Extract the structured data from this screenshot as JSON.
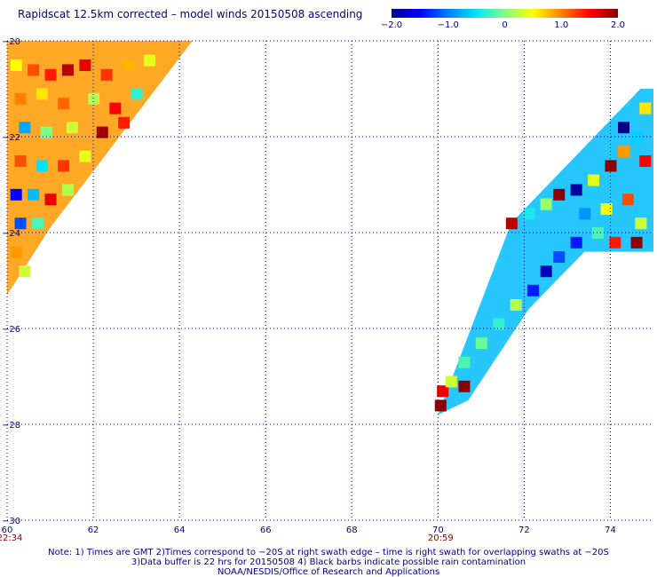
{
  "title": "Rapidscat 12.5km corrected – model winds 20150508 ascending",
  "colorbar": {
    "ticks": [
      "−2.0",
      "−1.0",
      "0",
      "1.0",
      "2.0"
    ],
    "tick_values": [
      -2.0,
      -1.0,
      0.0,
      1.0,
      2.0
    ],
    "colors": [
      "#00008b",
      "#0000ff",
      "#0080ff",
      "#00e5ff",
      "#80ff80",
      "#ffff00",
      "#ff8000",
      "#ff0000",
      "#8b0000"
    ]
  },
  "axes": {
    "x_ticks": [
      "60",
      "62",
      "64",
      "66",
      "68",
      "70",
      "72",
      "74"
    ],
    "x_values": [
      60,
      62,
      64,
      66,
      68,
      70,
      72,
      74
    ],
    "y_ticks": [
      "−20",
      "−22",
      "−24",
      "−26",
      "−28",
      "−30"
    ],
    "y_values": [
      -20,
      -22,
      -24,
      -26,
      -28,
      -30
    ],
    "xlim": [
      60,
      75
    ],
    "ylim": [
      -30,
      -20
    ],
    "grid": true
  },
  "time_labels": [
    {
      "text": "22:34",
      "lon": 60
    },
    {
      "text": "20:59",
      "lon": 70
    }
  ],
  "notes": [
    "Note: 1) Times are GMT 2)Times correspond to −20S at right swath edge – time is right swath for overlapping swaths at −20S",
    "3)Data buffer is 22 hrs for 20150508 4) Black barbs indicate possible rain contamination",
    "NOAA/NESDIS/Office of Research and Applications"
  ],
  "colors": {
    "text": "#00008b",
    "grid": "#00008b",
    "time": "#8b0000"
  },
  "swaths": [
    {
      "name": "West swath",
      "polygon_lonlat": [
        [
          60,
          -20
        ],
        [
          64.3,
          -20
        ],
        [
          61.0,
          -23.9
        ],
        [
          60,
          -25.3
        ]
      ],
      "cells": [
        {
          "lon": 60.2,
          "lat": -20.5,
          "v": 0.5
        },
        {
          "lon": 60.6,
          "lat": -20.6,
          "v": 1.2
        },
        {
          "lon": 61.0,
          "lat": -20.7,
          "v": 1.4
        },
        {
          "lon": 61.4,
          "lat": -20.6,
          "v": 1.8
        },
        {
          "lon": 61.8,
          "lat": -20.5,
          "v": 1.6
        },
        {
          "lon": 62.3,
          "lat": -20.7,
          "v": 1.3
        },
        {
          "lon": 62.8,
          "lat": -20.5,
          "v": 0.8
        },
        {
          "lon": 63.3,
          "lat": -20.4,
          "v": 0.4
        },
        {
          "lon": 60.3,
          "lat": -21.2,
          "v": 1.0
        },
        {
          "lon": 60.8,
          "lat": -21.1,
          "v": 0.6
        },
        {
          "lon": 61.3,
          "lat": -21.3,
          "v": 1.1
        },
        {
          "lon": 62.0,
          "lat": -21.2,
          "v": 0.2
        },
        {
          "lon": 62.5,
          "lat": -21.4,
          "v": 1.5
        },
        {
          "lon": 63.0,
          "lat": -21.1,
          "v": -0.3
        },
        {
          "lon": 60.4,
          "lat": -21.8,
          "v": -0.8
        },
        {
          "lon": 60.9,
          "lat": -21.9,
          "v": 0.0
        },
        {
          "lon": 61.5,
          "lat": -21.8,
          "v": 0.3
        },
        {
          "lon": 62.2,
          "lat": -21.9,
          "v": 1.9
        },
        {
          "lon": 62.7,
          "lat": -21.7,
          "v": 1.4
        },
        {
          "lon": 60.3,
          "lat": -22.5,
          "v": 1.2
        },
        {
          "lon": 60.8,
          "lat": -22.6,
          "v": -0.5
        },
        {
          "lon": 61.3,
          "lat": -22.6,
          "v": 1.3
        },
        {
          "lon": 61.8,
          "lat": -22.4,
          "v": 0.4
        },
        {
          "lon": 60.2,
          "lat": -23.2,
          "v": -1.5
        },
        {
          "lon": 60.6,
          "lat": -23.2,
          "v": -0.7
        },
        {
          "lon": 61.0,
          "lat": -23.3,
          "v": 1.6
        },
        {
          "lon": 61.4,
          "lat": -23.1,
          "v": 0.2
        },
        {
          "lon": 60.3,
          "lat": -23.8,
          "v": -1.2
        },
        {
          "lon": 60.7,
          "lat": -23.8,
          "v": -0.2
        },
        {
          "lon": 60.2,
          "lat": -24.4,
          "v": 0.9
        },
        {
          "lon": 60.4,
          "lat": -24.8,
          "v": 0.3
        }
      ]
    },
    {
      "name": "East swath",
      "polygon_lonlat": [
        [
          70.0,
          -27.8
        ],
        [
          70.7,
          -27.5
        ],
        [
          72.1,
          -25.6
        ],
        [
          73.4,
          -24.4
        ],
        [
          75,
          -24.4
        ],
        [
          75,
          -21.0
        ],
        [
          74.7,
          -21.0
        ],
        [
          71.7,
          -23.8
        ]
      ],
      "cells": [
        {
          "lon": 70.05,
          "lat": -27.6,
          "v": 2.0
        },
        {
          "lon": 70.1,
          "lat": -27.3,
          "v": 1.6
        },
        {
          "lon": 70.3,
          "lat": -27.1,
          "v": 0.3
        },
        {
          "lon": 70.6,
          "lat": -27.2,
          "v": 2.1
        },
        {
          "lon": 70.6,
          "lat": -26.7,
          "v": -0.2
        },
        {
          "lon": 71.0,
          "lat": -26.3,
          "v": -0.1
        },
        {
          "lon": 71.4,
          "lat": -25.9,
          "v": -0.3
        },
        {
          "lon": 71.8,
          "lat": -25.5,
          "v": 0.2
        },
        {
          "lon": 72.2,
          "lat": -25.2,
          "v": -1.4
        },
        {
          "lon": 72.5,
          "lat": -24.8,
          "v": -1.8
        },
        {
          "lon": 72.8,
          "lat": -24.5,
          "v": -1.2
        },
        {
          "lon": 73.2,
          "lat": -24.2,
          "v": -1.4
        },
        {
          "lon": 71.7,
          "lat": -23.8,
          "v": 1.8
        },
        {
          "lon": 72.1,
          "lat": -23.6,
          "v": -0.4
        },
        {
          "lon": 72.5,
          "lat": -23.4,
          "v": 0.1
        },
        {
          "lon": 72.8,
          "lat": -23.2,
          "v": 2.2
        },
        {
          "lon": 73.2,
          "lat": -23.1,
          "v": -1.9
        },
        {
          "lon": 73.6,
          "lat": -22.9,
          "v": 0.4
        },
        {
          "lon": 74.0,
          "lat": -22.6,
          "v": 2.1
        },
        {
          "lon": 74.3,
          "lat": -22.3,
          "v": 0.9
        },
        {
          "lon": 74.6,
          "lat": -22.0,
          "v": -0.6
        },
        {
          "lon": 73.4,
          "lat": -23.6,
          "v": -0.9
        },
        {
          "lon": 73.9,
          "lat": -23.5,
          "v": 0.5
        },
        {
          "lon": 74.4,
          "lat": -23.3,
          "v": 1.2
        },
        {
          "lon": 74.7,
          "lat": -23.8,
          "v": 0.3
        },
        {
          "lon": 74.6,
          "lat": -24.2,
          "v": 2.2
        },
        {
          "lon": 74.1,
          "lat": -24.2,
          "v": 1.4
        },
        {
          "lon": 73.7,
          "lat": -24.0,
          "v": -0.2
        },
        {
          "lon": 74.8,
          "lat": -21.4,
          "v": 0.6
        },
        {
          "lon": 74.3,
          "lat": -21.8,
          "v": -2.0
        },
        {
          "lon": 74.8,
          "lat": -22.5,
          "v": 1.5
        }
      ]
    }
  ]
}
